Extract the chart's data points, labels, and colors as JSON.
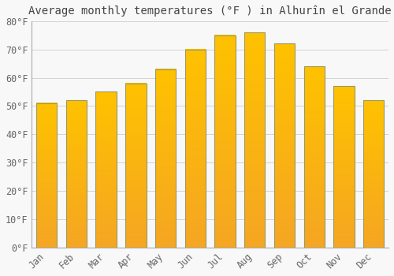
{
  "title": "Average monthly temperatures (°F ) in Alhurîn el Grande",
  "months": [
    "Jan",
    "Feb",
    "Mar",
    "Apr",
    "May",
    "Jun",
    "Jul",
    "Aug",
    "Sep",
    "Oct",
    "Nov",
    "Dec"
  ],
  "values": [
    51,
    52,
    55,
    58,
    63,
    70,
    75,
    76,
    72,
    64,
    57,
    52
  ],
  "bar_color_top": "#FFC200",
  "bar_color_bottom": "#F5A623",
  "bar_edge_color": "#999966",
  "ylim": [
    0,
    80
  ],
  "yticks": [
    0,
    10,
    20,
    30,
    40,
    50,
    60,
    70,
    80
  ],
  "background_color": "#F8F8F8",
  "plot_bg_color": "#F8F8F8",
  "grid_color": "#CCCCCC",
  "title_fontsize": 10,
  "tick_fontsize": 8.5,
  "tick_color": "#666666"
}
